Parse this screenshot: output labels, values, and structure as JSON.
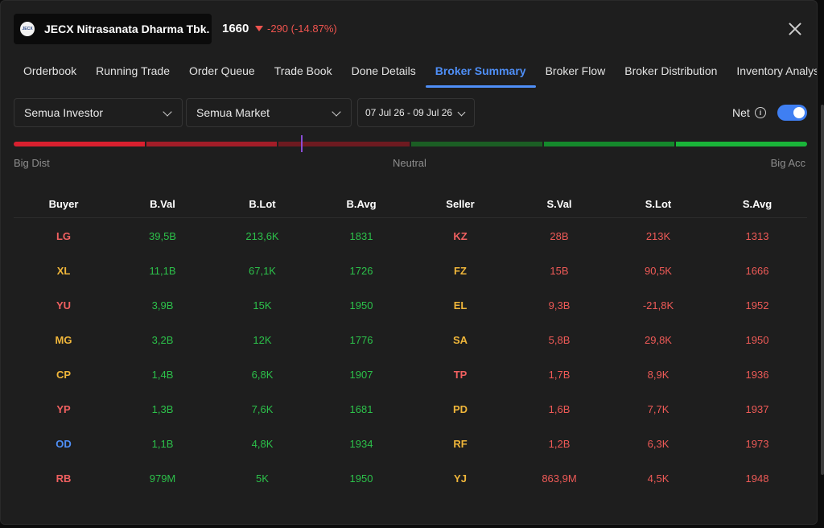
{
  "header": {
    "logo_text": "JECX",
    "ticker_name": "JECX Nitrasanata Dharma Tbk.",
    "price": "1660",
    "change": "-290 (-14.87%)"
  },
  "tabs": [
    {
      "label": "Orderbook",
      "active": false
    },
    {
      "label": "Running Trade",
      "active": false
    },
    {
      "label": "Order Queue",
      "active": false
    },
    {
      "label": "Trade Book",
      "active": false
    },
    {
      "label": "Done Details",
      "active": false
    },
    {
      "label": "Broker Summary",
      "active": true
    },
    {
      "label": "Broker Flow",
      "active": false
    },
    {
      "label": "Broker Distribution",
      "active": false
    },
    {
      "label": "Inventory Analysis",
      "active": false
    }
  ],
  "filters": {
    "investor": "Semua Investor",
    "market": "Semua Market",
    "date_range": "07 Jul 26 - 09 Jul 26",
    "net_label": "Net",
    "net_enabled": true
  },
  "scale": {
    "left_label": "Big Dist",
    "center_label": "Neutral",
    "right_label": "Big Acc",
    "segment_colors": [
      "#d9202f",
      "#a31d28",
      "#6e1a20",
      "#1b5e24",
      "#15892c",
      "#1ab539"
    ],
    "marker_color": "#8a4dd6"
  },
  "colors": {
    "accent": "#4f8ff7",
    "positive": "#2cc14a",
    "negative": "#ef5a57",
    "broker_red": "#f06060",
    "broker_orange": "#f0b63a",
    "broker_blue": "#4f8ff7"
  },
  "table": {
    "headers": [
      "Buyer",
      "B.Val",
      "B.Lot",
      "B.Avg",
      "Seller",
      "S.Val",
      "S.Lot",
      "S.Avg"
    ],
    "rows": [
      {
        "buyer": "LG",
        "buyer_color": "#f06060",
        "b_val": "39,5B",
        "b_lot": "213,6K",
        "b_avg": "1831",
        "seller": "KZ",
        "seller_color": "#f06060",
        "s_val": "28B",
        "s_lot": "213K",
        "s_avg": "1313"
      },
      {
        "buyer": "XL",
        "buyer_color": "#f0b63a",
        "b_val": "11,1B",
        "b_lot": "67,1K",
        "b_avg": "1726",
        "seller": "FZ",
        "seller_color": "#f0b63a",
        "s_val": "15B",
        "s_lot": "90,5K",
        "s_avg": "1666"
      },
      {
        "buyer": "YU",
        "buyer_color": "#f06060",
        "b_val": "3,9B",
        "b_lot": "15K",
        "b_avg": "1950",
        "seller": "EL",
        "seller_color": "#f0b63a",
        "s_val": "9,3B",
        "s_lot": "-21,8K",
        "s_avg": "1952"
      },
      {
        "buyer": "MG",
        "buyer_color": "#f0b63a",
        "b_val": "3,2B",
        "b_lot": "12K",
        "b_avg": "1776",
        "seller": "SA",
        "seller_color": "#f0b63a",
        "s_val": "5,8B",
        "s_lot": "29,8K",
        "s_avg": "1950"
      },
      {
        "buyer": "CP",
        "buyer_color": "#f0b63a",
        "b_val": "1,4B",
        "b_lot": "6,8K",
        "b_avg": "1907",
        "seller": "TP",
        "seller_color": "#f06060",
        "s_val": "1,7B",
        "s_lot": "8,9K",
        "s_avg": "1936"
      },
      {
        "buyer": "YP",
        "buyer_color": "#f06060",
        "b_val": "1,3B",
        "b_lot": "7,6K",
        "b_avg": "1681",
        "seller": "PD",
        "seller_color": "#f0b63a",
        "s_val": "1,6B",
        "s_lot": "7,7K",
        "s_avg": "1937"
      },
      {
        "buyer": "OD",
        "buyer_color": "#4f8ff7",
        "b_val": "1,1B",
        "b_lot": "4,8K",
        "b_avg": "1934",
        "seller": "RF",
        "seller_color": "#f0b63a",
        "s_val": "1,2B",
        "s_lot": "6,3K",
        "s_avg": "1973"
      },
      {
        "buyer": "RB",
        "buyer_color": "#f06060",
        "b_val": "979M",
        "b_lot": "5K",
        "b_avg": "1950",
        "seller": "YJ",
        "seller_color": "#f0b63a",
        "s_val": "863,9M",
        "s_lot": "4,5K",
        "s_avg": "1948"
      }
    ]
  }
}
